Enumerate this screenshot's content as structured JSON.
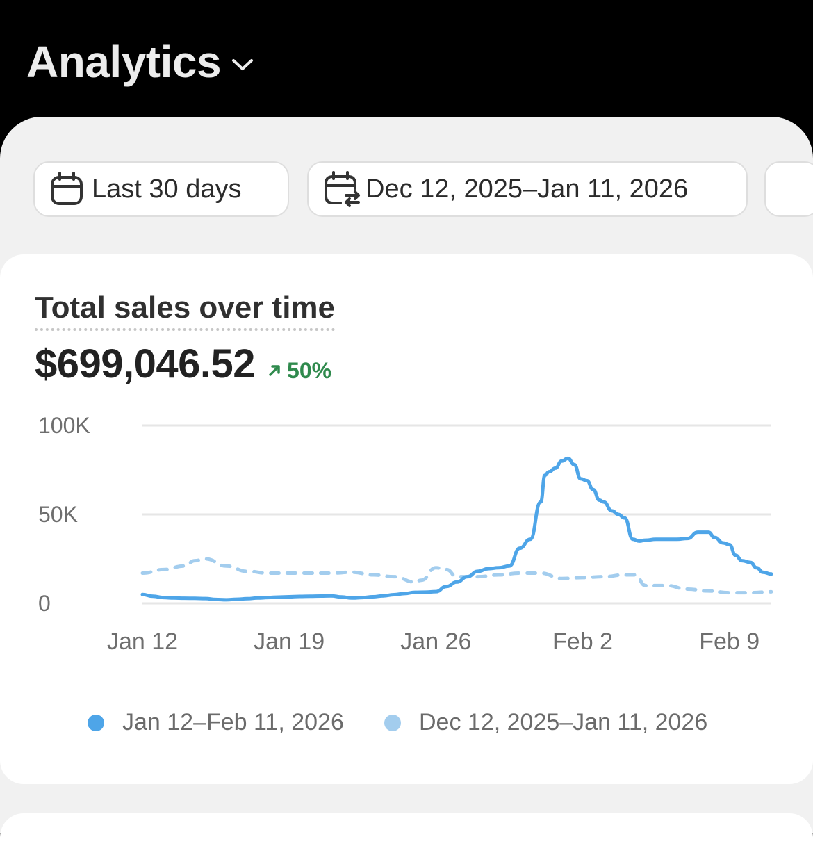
{
  "header": {
    "title": "Analytics"
  },
  "filters": {
    "range_label": "Last 30 days",
    "compare_label": "Dec 12, 2025–Jan 11, 2026"
  },
  "card": {
    "title": "Total sales over time",
    "value": "$699,046.52",
    "change": "50%"
  },
  "colors": {
    "current": "#4ea5e8",
    "previous": "#a3cdee",
    "positive": "#2f8a4d"
  },
  "chart_data": {
    "type": "line",
    "title": "Total sales over time",
    "xlabel": "",
    "ylabel": "",
    "ylim": [
      0,
      100000
    ],
    "y_ticks": [
      {
        "value": 0,
        "label": "0"
      },
      {
        "value": 50000,
        "label": "50K"
      },
      {
        "value": 100000,
        "label": "100K"
      }
    ],
    "x_ticks": [
      {
        "day": 0,
        "label": "Jan 12"
      },
      {
        "day": 7,
        "label": "Jan 19"
      },
      {
        "day": 14,
        "label": "Jan 26"
      },
      {
        "day": 21,
        "label": "Feb 2"
      },
      {
        "day": 28,
        "label": "Feb 9"
      }
    ],
    "series": [
      {
        "name": "Jan 12–Feb 11, 2026",
        "style": "solid",
        "x": [
          0,
          0.5,
          1,
          1.5,
          2,
          2.5,
          3,
          3.5,
          4,
          4.5,
          5,
          5.5,
          6,
          6.5,
          7,
          7.5,
          8,
          8.5,
          9,
          9.5,
          10,
          10.5,
          11,
          11.5,
          12,
          12.5,
          13,
          13.5,
          14,
          14.5,
          15,
          15.5,
          16,
          16.5,
          17,
          17.5,
          18,
          18.5,
          19,
          19.2,
          19.4,
          19.7,
          20,
          20.3,
          20.6,
          20.9,
          21.2,
          21.5,
          21.8,
          22,
          22.4,
          22.7,
          23,
          23.4,
          23.7,
          24,
          24.5,
          25,
          25.5,
          26,
          26.5,
          27,
          27.3,
          27.7,
          28,
          28.3,
          28.6,
          29,
          29.3,
          29.6,
          30
        ],
        "values": [
          5000,
          4000,
          3300,
          3000,
          2900,
          2800,
          2700,
          2200,
          2000,
          2300,
          2600,
          3000,
          3300,
          3500,
          3700,
          3900,
          4000,
          4100,
          4200,
          3600,
          3000,
          3300,
          3700,
          4200,
          4900,
          5500,
          6200,
          6300,
          6600,
          9500,
          12000,
          15000,
          18000,
          19500,
          20000,
          21000,
          31000,
          36000,
          57000,
          72000,
          74000,
          76000,
          80000,
          81500,
          78000,
          70000,
          69000,
          64000,
          58000,
          57000,
          52000,
          50000,
          48000,
          36000,
          35000,
          35500,
          36000,
          36000,
          36000,
          36500,
          40000,
          40000,
          37000,
          34000,
          33000,
          27000,
          24000,
          23000,
          20000,
          17500,
          16500
        ]
      },
      {
        "name": "Dec 12, 2025–Jan 11, 2026",
        "style": "dashed",
        "x": [
          0,
          1,
          2,
          2.5,
          3,
          4,
          5,
          6,
          7,
          8,
          9,
          10,
          11,
          12,
          13,
          13.3,
          14,
          14.5,
          15,
          16,
          17,
          18,
          19,
          20,
          21,
          22,
          23,
          23.5,
          24,
          25,
          26,
          27,
          28,
          29,
          30
        ],
        "values": [
          17000,
          19000,
          21000,
          24000,
          25000,
          21000,
          18000,
          17000,
          17000,
          17000,
          17000,
          17500,
          16000,
          15000,
          12000,
          13000,
          20000,
          19000,
          15000,
          15000,
          16000,
          17000,
          17000,
          14000,
          14500,
          15000,
          16000,
          16000,
          10000,
          10000,
          8000,
          7000,
          6000,
          6000,
          6500
        ]
      }
    ]
  }
}
